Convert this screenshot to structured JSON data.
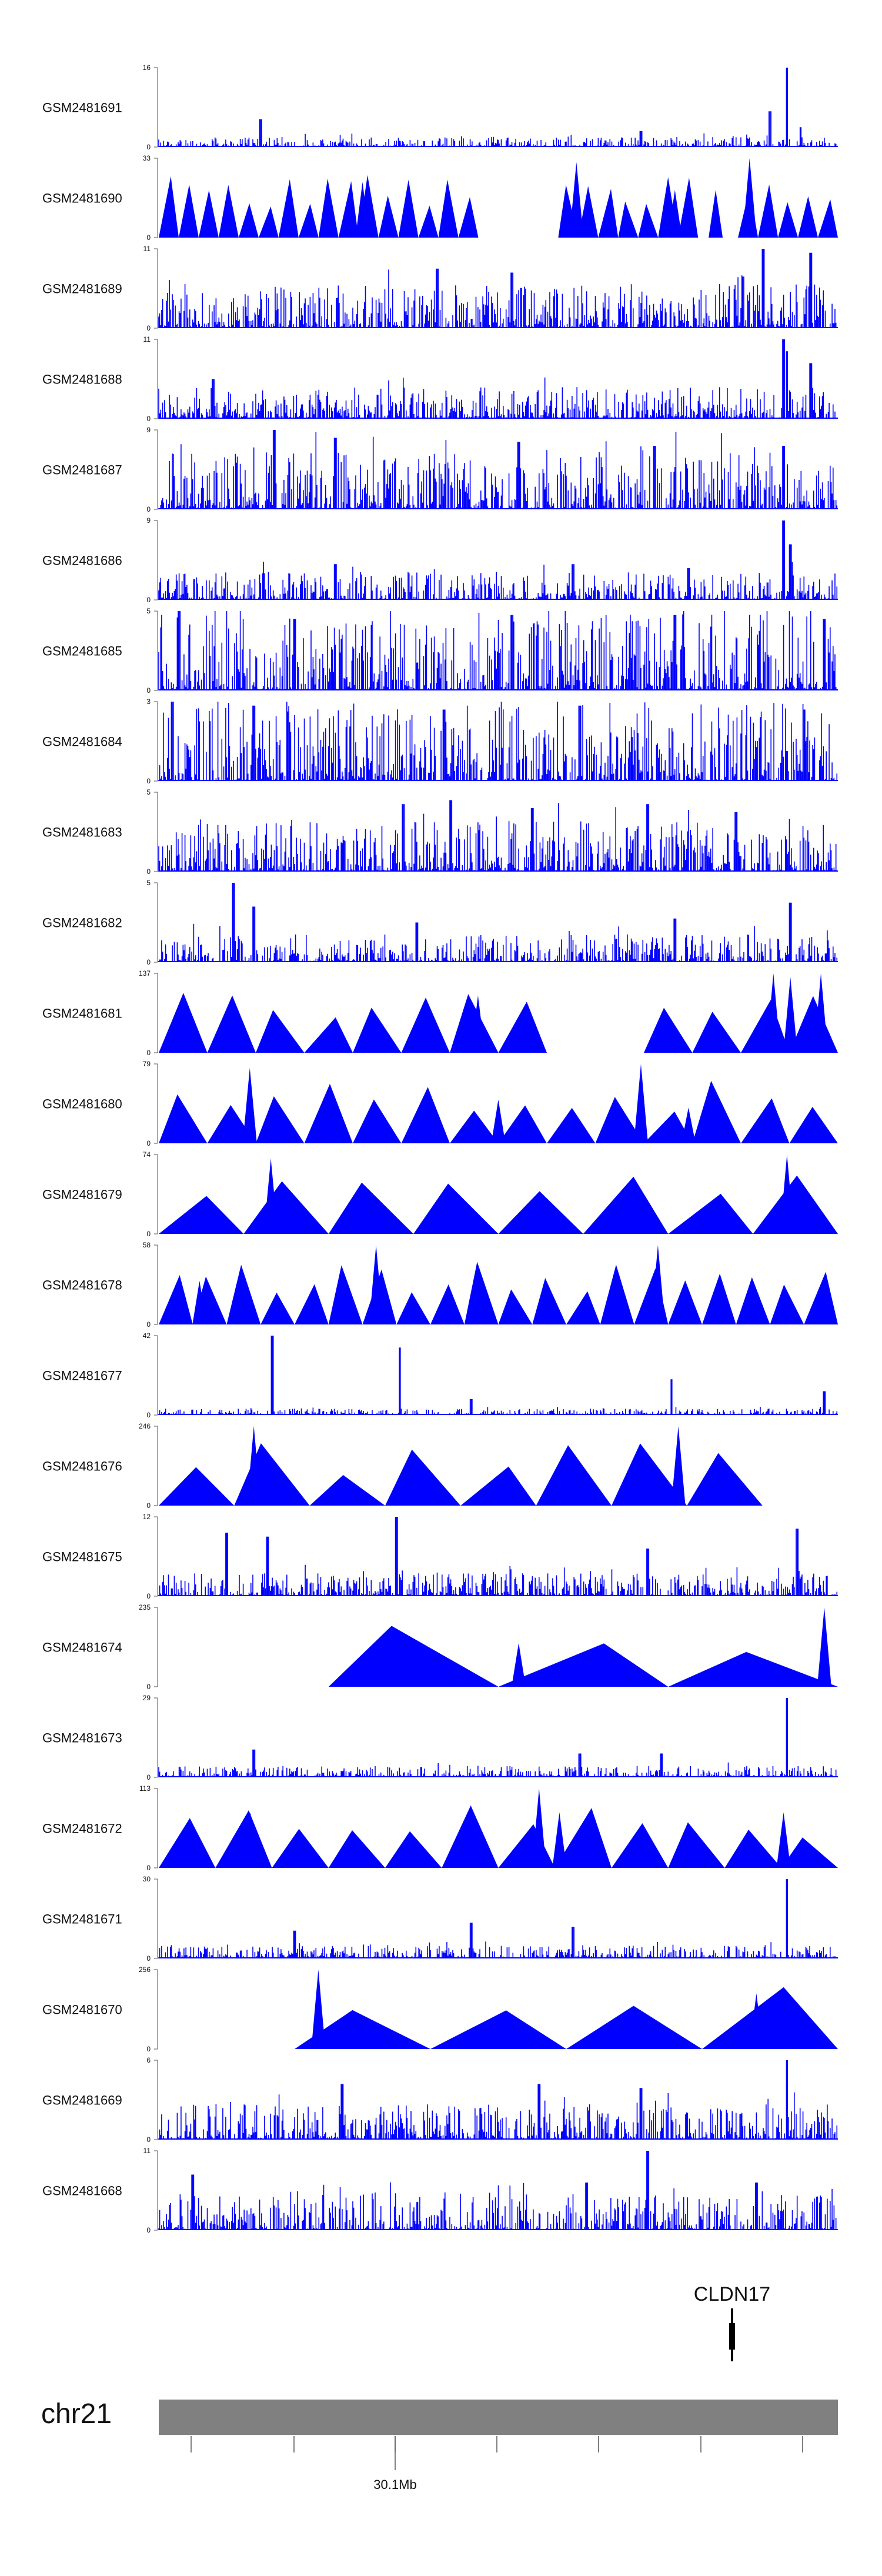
{
  "chart_data": {
    "type": "area",
    "title": "",
    "region": {
      "chromosome": "chr21",
      "position_label": "30.1Mb"
    },
    "gene": {
      "name": "CLDN17"
    },
    "colors": {
      "signal": "#0000ff",
      "ideogram": "#808080",
      "axis": "#555555",
      "gene": "#000000"
    },
    "tracks": [
      {
        "name": "GSM2481691",
        "ymin": 0,
        "ymax": 16,
        "style": "dense",
        "seed": 11,
        "base": 0.08,
        "peaks": [
          [
            0.15,
            0.35
          ],
          [
            0.9,
            0.45
          ],
          [
            0.925,
            1.0
          ],
          [
            0.945,
            0.25
          ],
          [
            0.71,
            0.2
          ]
        ]
      },
      {
        "name": "GSM2481690",
        "ymin": 0,
        "ymax": 33,
        "style": "triangles",
        "seed": 23,
        "count": 34,
        "gaps": [
          [
            0.48,
            0.58
          ],
          [
            0.8,
            0.86
          ]
        ],
        "spikes": [
          [
            0.615,
            0.95
          ],
          [
            0.87,
            1.0
          ],
          [
            0.82,
            0.6
          ],
          [
            0.3,
            0.7
          ],
          [
            0.76,
            0.6
          ]
        ]
      },
      {
        "name": "GSM2481689",
        "ymin": 0,
        "ymax": 11,
        "style": "dense",
        "seed": 37,
        "base": 0.35,
        "peaks": [
          [
            0.96,
            0.95
          ],
          [
            0.89,
            1.0
          ],
          [
            0.41,
            0.75
          ],
          [
            0.52,
            0.7
          ],
          [
            0.86,
            0.65
          ]
        ]
      },
      {
        "name": "GSM2481688",
        "ymin": 0,
        "ymax": 11,
        "style": "dense",
        "seed": 41,
        "base": 0.25,
        "peaks": [
          [
            0.92,
            1.0
          ],
          [
            0.925,
            0.85
          ],
          [
            0.96,
            0.7
          ],
          [
            0.08,
            0.5
          ]
        ]
      },
      {
        "name": "GSM2481687",
        "ymin": 0,
        "ymax": 9,
        "style": "dense",
        "seed": 53,
        "base": 0.45,
        "peaks": [
          [
            0.17,
            1.0
          ],
          [
            0.26,
            0.9
          ],
          [
            0.53,
            0.85
          ],
          [
            0.73,
            0.8
          ],
          [
            0.92,
            0.8
          ]
        ]
      },
      {
        "name": "GSM2481686",
        "ymin": 0,
        "ymax": 9,
        "style": "dense",
        "seed": 61,
        "base": 0.22,
        "peaks": [
          [
            0.92,
            1.0
          ],
          [
            0.93,
            0.7
          ],
          [
            0.26,
            0.45
          ],
          [
            0.61,
            0.45
          ],
          [
            0.78,
            0.4
          ]
        ]
      },
      {
        "name": "GSM2481685",
        "ymin": 0,
        "ymax": 5,
        "style": "dense",
        "seed": 71,
        "base": 0.6,
        "peaks": [
          [
            0.03,
            1.0
          ],
          [
            0.2,
            0.9
          ],
          [
            0.52,
            0.95
          ],
          [
            0.76,
            0.95
          ],
          [
            0.98,
            0.9
          ]
        ]
      },
      {
        "name": "GSM2481684",
        "ymin": 0,
        "ymax": 3,
        "style": "dense",
        "seed": 83,
        "base": 0.62,
        "peaks": [
          [
            0.02,
            1.0
          ],
          [
            0.14,
            0.95
          ],
          [
            0.42,
            0.9
          ],
          [
            0.62,
            0.95
          ],
          [
            0.95,
            0.9
          ]
        ]
      },
      {
        "name": "GSM2481683",
        "ymin": 0,
        "ymax": 5,
        "style": "dense",
        "seed": 97,
        "base": 0.4,
        "peaks": [
          [
            0.36,
            0.85
          ],
          [
            0.43,
            0.9
          ],
          [
            0.55,
            0.8
          ],
          [
            0.72,
            0.85
          ],
          [
            0.85,
            0.75
          ]
        ]
      },
      {
        "name": "GSM2481682",
        "ymin": 0,
        "ymax": 5,
        "style": "dense",
        "seed": 101,
        "base": 0.22,
        "peaks": [
          [
            0.11,
            1.0
          ],
          [
            0.14,
            0.7
          ],
          [
            0.93,
            0.75
          ],
          [
            0.38,
            0.5
          ],
          [
            0.76,
            0.55
          ]
        ]
      },
      {
        "name": "GSM2481681",
        "ymin": 0,
        "ymax": 137,
        "style": "triangles",
        "seed": 5,
        "count": 14,
        "gaps": [
          [
            0.56,
            0.68
          ]
        ],
        "spikes": [
          [
            0.47,
            0.72
          ],
          [
            0.905,
            1.0
          ],
          [
            0.93,
            0.95
          ],
          [
            0.975,
            1.0
          ]
        ]
      },
      {
        "name": "GSM2481680",
        "ymin": 0,
        "ymax": 79,
        "style": "triangles",
        "seed": 7,
        "count": 14,
        "gaps": [
          [
            0.86,
            0.88
          ]
        ],
        "spikes": [
          [
            0.134,
            0.95
          ],
          [
            0.71,
            1.0
          ],
          [
            0.5,
            0.55
          ],
          [
            0.78,
            0.45
          ]
        ]
      },
      {
        "name": "GSM2481679",
        "ymin": 0,
        "ymax": 74,
        "style": "triangles",
        "seed": 9,
        "count": 8,
        "gaps": [
          [
            0.0,
            0.04
          ]
        ],
        "spikes": [
          [
            0.165,
            0.95
          ],
          [
            0.925,
            1.0
          ]
        ]
      },
      {
        "name": "GSM2481678",
        "ymin": 0,
        "ymax": 58,
        "style": "triangles",
        "seed": 13,
        "count": 20,
        "gaps": [
          [
            0.0,
            0.02
          ]
        ],
        "spikes": [
          [
            0.32,
            1.0
          ],
          [
            0.735,
            1.0
          ],
          [
            0.06,
            0.55
          ]
        ]
      },
      {
        "name": "GSM2481677",
        "ymin": 0,
        "ymax": 42,
        "style": "dense",
        "seed": 131,
        "base": 0.05,
        "peaks": [
          [
            0.167,
            1.0
          ],
          [
            0.355,
            0.85
          ],
          [
            0.755,
            0.45
          ],
          [
            0.46,
            0.2
          ],
          [
            0.98,
            0.3
          ]
        ]
      },
      {
        "name": "GSM2481676",
        "ymin": 0,
        "ymax": 246,
        "style": "triangles",
        "seed": 15,
        "count": 9,
        "gaps": [
          [
            0.0,
            0.04
          ],
          [
            0.91,
            1.0
          ]
        ],
        "spikes": [
          [
            0.14,
            1.0
          ],
          [
            0.765,
            1.0
          ]
        ]
      },
      {
        "name": "GSM2481675",
        "ymin": 0,
        "ymax": 12,
        "style": "dense",
        "seed": 149,
        "base": 0.18,
        "peaks": [
          [
            0.35,
            1.0
          ],
          [
            0.1,
            0.8
          ],
          [
            0.16,
            0.75
          ],
          [
            0.94,
            0.85
          ],
          [
            0.72,
            0.6
          ]
        ]
      },
      {
        "name": "GSM2481674",
        "ymin": 0,
        "ymax": 235,
        "style": "triangles",
        "seed": 17,
        "count": 4,
        "gaps": [
          [
            0.0,
            0.2
          ]
        ],
        "spikes": [
          [
            0.98,
            1.0
          ],
          [
            0.53,
            0.55
          ]
        ]
      },
      {
        "name": "GSM2481673",
        "ymin": 0,
        "ymax": 29,
        "style": "dense",
        "seed": 163,
        "base": 0.09,
        "peaks": [
          [
            0.925,
            1.0
          ],
          [
            0.14,
            0.35
          ],
          [
            0.62,
            0.3
          ],
          [
            0.74,
            0.3
          ]
        ]
      },
      {
        "name": "GSM2481672",
        "ymin": 0,
        "ymax": 113,
        "style": "triangles",
        "seed": 19,
        "count": 12,
        "gaps": [
          [
            0.0,
            0.02
          ]
        ],
        "spikes": [
          [
            0.135,
            0.7
          ],
          [
            0.56,
            1.0
          ],
          [
            0.59,
            0.7
          ],
          [
            0.92,
            0.7
          ]
        ]
      },
      {
        "name": "GSM2481671",
        "ymin": 0,
        "ymax": 30,
        "style": "dense",
        "seed": 173,
        "base": 0.1,
        "peaks": [
          [
            0.925,
            1.0
          ],
          [
            0.46,
            0.45
          ],
          [
            0.61,
            0.4
          ],
          [
            0.2,
            0.35
          ]
        ]
      },
      {
        "name": "GSM2481670",
        "ymin": 0,
        "ymax": 256,
        "style": "triangles",
        "seed": 21,
        "count": 5,
        "gaps": [
          [
            0.0,
            0.1
          ]
        ],
        "spikes": [
          [
            0.235,
            1.0
          ],
          [
            0.88,
            0.7
          ]
        ]
      },
      {
        "name": "GSM2481669",
        "ymin": 0,
        "ymax": 6,
        "style": "dense",
        "seed": 181,
        "base": 0.28,
        "peaks": [
          [
            0.925,
            1.0
          ],
          [
            0.27,
            0.7
          ],
          [
            0.56,
            0.7
          ],
          [
            0.71,
            0.65
          ]
        ]
      },
      {
        "name": "GSM2481668",
        "ymin": 0,
        "ymax": 11,
        "style": "dense",
        "seed": 191,
        "base": 0.3,
        "peaks": [
          [
            0.72,
            1.0
          ],
          [
            0.05,
            0.7
          ],
          [
            0.63,
            0.6
          ],
          [
            0.88,
            0.6
          ]
        ]
      }
    ]
  }
}
